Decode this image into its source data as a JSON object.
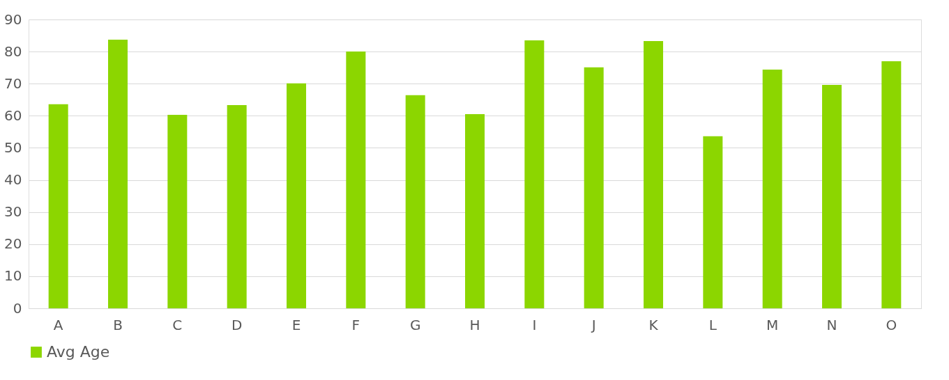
{
  "chart_data": {
    "type": "bar",
    "categories": [
      "A",
      "B",
      "C",
      "D",
      "E",
      "F",
      "G",
      "H",
      "I",
      "J",
      "K",
      "L",
      "M",
      "N",
      "O"
    ],
    "series": [
      {
        "name": "Avg Age",
        "color": "#8cd600",
        "values": [
          63.6,
          83.7,
          60.3,
          63.3,
          70.1,
          80.0,
          66.4,
          60.5,
          83.5,
          75.1,
          83.3,
          53.6,
          74.4,
          69.6,
          77.0
        ]
      }
    ],
    "ylim": [
      0,
      90
    ],
    "yticks": [
      0,
      10,
      20,
      30,
      40,
      50,
      60,
      70,
      80,
      90
    ],
    "grid": "y",
    "legend": "bottom"
  }
}
